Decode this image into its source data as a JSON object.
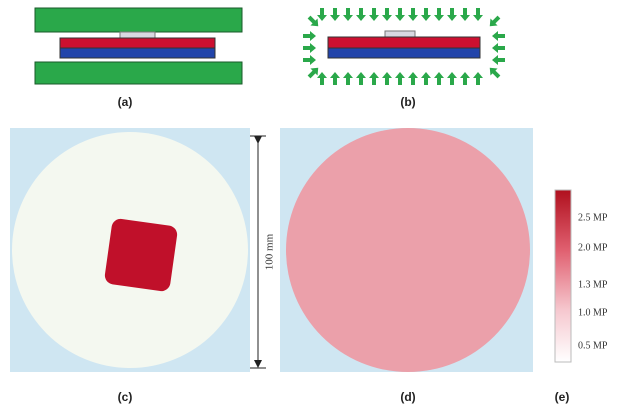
{
  "panels": [
    {
      "label": "(a)"
    },
    {
      "label": "(b)"
    },
    {
      "label": "(c)"
    },
    {
      "label": "(d)"
    },
    {
      "label": "(e)"
    }
  ],
  "scale_label": "100 mm",
  "colorbar": {
    "labels": [
      "2.5 MP",
      "2.0 MP",
      "1.3 MP",
      "1.0 MP",
      "0.5 MP"
    ]
  }
}
